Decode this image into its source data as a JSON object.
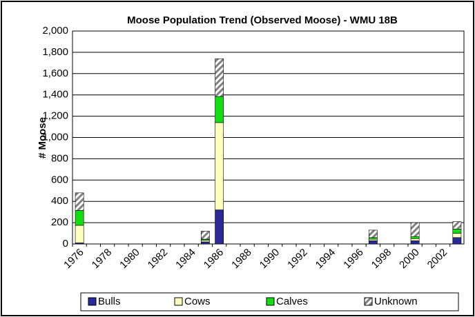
{
  "chart_data": {
    "type": "stacked_bar",
    "title": "Moose Population Trend (Observed Moose) - WMU 18B",
    "y_label": "# Moose",
    "categories": [
      "1976",
      null,
      "1978",
      null,
      "1980",
      null,
      "1982",
      null,
      "1984",
      null,
      "1986",
      null,
      "1988",
      null,
      "1990",
      null,
      "1992",
      null,
      "1994",
      null,
      "1996",
      null,
      "1998",
      null,
      "2000",
      null,
      "2002",
      null
    ],
    "series": [
      {
        "name": "Bulls",
        "color": "#2a2a9a",
        "values": [
          10,
          null,
          null,
          null,
          null,
          null,
          null,
          null,
          null,
          20,
          320,
          null,
          null,
          null,
          null,
          null,
          null,
          null,
          null,
          null,
          null,
          30,
          null,
          null,
          30,
          null,
          null,
          60
        ]
      },
      {
        "name": "Cows",
        "color": "#ffffc0",
        "values": [
          165,
          null,
          null,
          null,
          null,
          null,
          null,
          null,
          null,
          15,
          820,
          null,
          null,
          null,
          null,
          null,
          null,
          null,
          null,
          null,
          null,
          15,
          null,
          null,
          20,
          null,
          null,
          40
        ]
      },
      {
        "name": "Calves",
        "color": "#11dd11",
        "values": [
          140,
          null,
          null,
          null,
          null,
          null,
          null,
          null,
          null,
          10,
          245,
          null,
          null,
          null,
          null,
          null,
          null,
          null,
          null,
          null,
          null,
          15,
          null,
          null,
          20,
          null,
          null,
          40
        ]
      },
      {
        "name": "Unknown",
        "color": "#808080",
        "pattern": "hatch",
        "values": [
          165,
          null,
          null,
          null,
          null,
          null,
          null,
          null,
          null,
          75,
          355,
          null,
          null,
          null,
          null,
          null,
          null,
          null,
          null,
          null,
          null,
          70,
          null,
          null,
          130,
          null,
          null,
          70
        ]
      }
    ],
    "ylim": [
      0,
      2000
    ],
    "yticks": [
      0,
      200,
      400,
      600,
      800,
      {
        "value": 1000,
        "label": "1,000"
      },
      {
        "value": 1200,
        "label": "1,200"
      },
      {
        "value": 1400,
        "label": "1,400"
      },
      {
        "value": 1600,
        "label": "1,600"
      },
      {
        "value": 1800,
        "label": "1,800"
      },
      {
        "value": 2000,
        "label": "2,000"
      }
    ],
    "grid": true,
    "legend": "bottom"
  }
}
